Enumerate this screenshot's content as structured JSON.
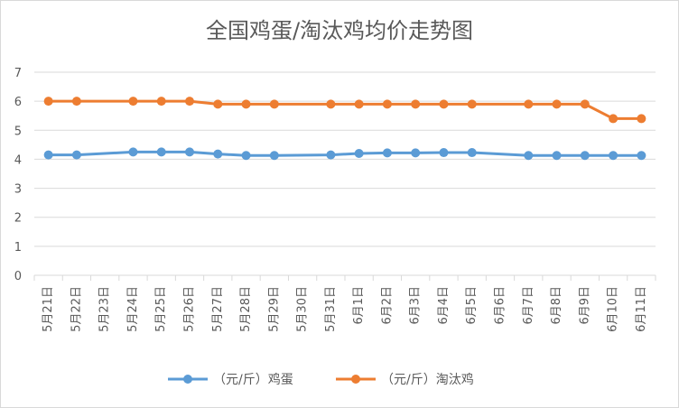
{
  "chart_data": {
    "type": "line",
    "title": "全国鸡蛋/淘汰鸡均价走势图",
    "xlabel": "",
    "ylabel": "",
    "ylim": [
      0,
      7
    ],
    "yticks": [
      0,
      1,
      2,
      3,
      4,
      5,
      6,
      7
    ],
    "grid": true,
    "legend_position": "bottom",
    "categories": [
      "5月21日",
      "5月22日",
      "5月23日",
      "5月24日",
      "5月25日",
      "5月26日",
      "5月27日",
      "5月28日",
      "5月29日",
      "5月30日",
      "5月31日",
      "6月1日",
      "6月2日",
      "6月3日",
      "6月4日",
      "6月5日",
      "6月6日",
      "6月7日",
      "6月8日",
      "6月9日",
      "6月10日",
      "6月11日"
    ],
    "series": [
      {
        "name": "（元/斤）鸡蛋",
        "color": "#5b9bd5",
        "values": [
          4.15,
          4.15,
          null,
          4.25,
          4.25,
          4.25,
          4.18,
          4.13,
          4.13,
          null,
          4.15,
          4.2,
          4.22,
          4.22,
          4.23,
          4.23,
          null,
          4.13,
          4.13,
          4.13,
          4.13,
          4.13
        ]
      },
      {
        "name": "（元/斤）淘汰鸡",
        "color": "#ed7d31",
        "values": [
          6.0,
          6.0,
          null,
          6.0,
          6.0,
          6.0,
          5.9,
          5.9,
          5.9,
          null,
          5.9,
          5.9,
          5.9,
          5.9,
          5.9,
          5.9,
          null,
          5.9,
          5.9,
          5.9,
          5.4,
          5.4
        ]
      }
    ]
  }
}
